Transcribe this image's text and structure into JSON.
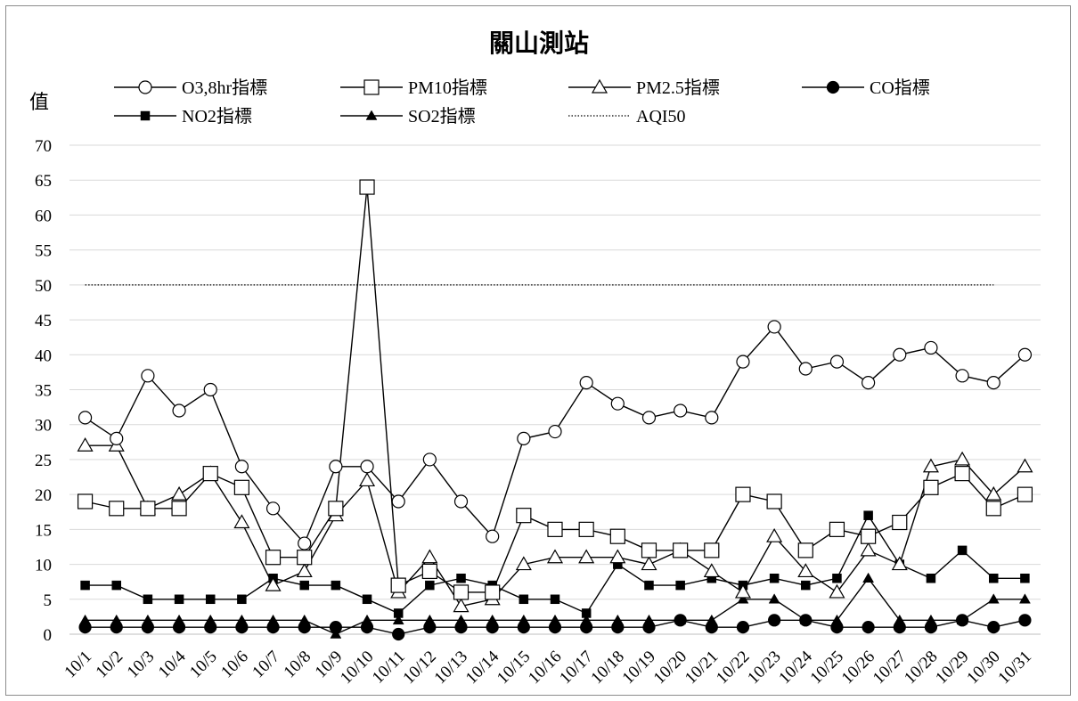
{
  "chart_data": {
    "type": "line",
    "title": "關山測站",
    "ylabel": "值",
    "xlabel": "",
    "ylim": [
      0,
      70
    ],
    "yticks": [
      0,
      5,
      10,
      15,
      20,
      25,
      30,
      35,
      40,
      45,
      50,
      55,
      60,
      65,
      70
    ],
    "grid": true,
    "legend_position": "top",
    "categories": [
      "10/1",
      "10/2",
      "10/3",
      "10/4",
      "10/5",
      "10/6",
      "10/7",
      "10/8",
      "10/9",
      "10/10",
      "10/11",
      "10/12",
      "10/13",
      "10/14",
      "10/15",
      "10/16",
      "10/17",
      "10/18",
      "10/19",
      "10/20",
      "10/21",
      "10/22",
      "10/23",
      "10/24",
      "10/25",
      "10/26",
      "10/27",
      "10/28",
      "10/29",
      "10/30",
      "10/31"
    ],
    "series": [
      {
        "name": "O3,8hr指標",
        "marker": "circle-open",
        "line": "solid",
        "values": [
          31,
          28,
          37,
          32,
          35,
          24,
          18,
          13,
          24,
          24,
          19,
          25,
          19,
          14,
          28,
          29,
          36,
          33,
          31,
          32,
          31,
          39,
          44,
          38,
          39,
          36,
          40,
          41,
          37,
          36,
          40
        ]
      },
      {
        "name": "PM10指標",
        "marker": "square-open",
        "line": "solid",
        "values": [
          19,
          18,
          18,
          18,
          23,
          21,
          11,
          11,
          18,
          64,
          7,
          9,
          6,
          6,
          17,
          15,
          15,
          14,
          12,
          12,
          12,
          20,
          19,
          12,
          15,
          14,
          16,
          21,
          23,
          18,
          20
        ]
      },
      {
        "name": "PM2.5指標",
        "marker": "triangle-open",
        "line": "solid",
        "values": [
          27,
          27,
          18,
          20,
          23,
          16,
          7,
          9,
          17,
          22,
          6,
          11,
          4,
          5,
          10,
          11,
          11,
          11,
          10,
          12,
          9,
          6,
          14,
          9,
          6,
          12,
          10,
          24,
          25,
          20,
          24
        ]
      },
      {
        "name": "CO指標",
        "marker": "circle-filled",
        "line": "solid",
        "values": [
          1,
          1,
          1,
          1,
          1,
          1,
          1,
          1,
          1,
          1,
          0,
          1,
          1,
          1,
          1,
          1,
          1,
          1,
          1,
          2,
          1,
          1,
          2,
          2,
          1,
          1,
          1,
          1,
          2,
          1,
          2
        ]
      },
      {
        "name": "NO2指標",
        "marker": "square-filled",
        "line": "solid",
        "values": [
          7,
          7,
          5,
          5,
          5,
          5,
          8,
          7,
          7,
          5,
          3,
          7,
          8,
          7,
          5,
          5,
          3,
          10,
          7,
          7,
          8,
          7,
          8,
          7,
          8,
          17,
          10,
          8,
          12,
          8,
          8
        ]
      },
      {
        "name": "SO2指標",
        "marker": "triangle-filled",
        "line": "solid",
        "values": [
          2,
          2,
          2,
          2,
          2,
          2,
          2,
          2,
          0,
          2,
          2,
          2,
          2,
          2,
          2,
          2,
          2,
          2,
          2,
          2,
          2,
          5,
          5,
          2,
          2,
          8,
          2,
          2,
          2,
          5,
          5
        ]
      },
      {
        "name": "AQI50",
        "marker": "none",
        "line": "dotted",
        "values": [
          50,
          50,
          50,
          50,
          50,
          50,
          50,
          50,
          50,
          50,
          50,
          50,
          50,
          50,
          50,
          50,
          50,
          50,
          50,
          50,
          50,
          50,
          50,
          50,
          50,
          50,
          50,
          50,
          50,
          50,
          null
        ]
      }
    ]
  }
}
